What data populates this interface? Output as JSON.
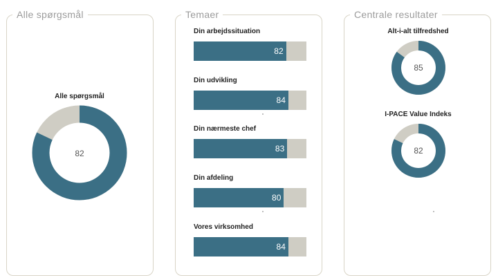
{
  "panels": {
    "all": {
      "title": "Alle spørgsmål",
      "donut": {
        "title": "Alle spørgsmål",
        "value": 82
      }
    },
    "themes": {
      "title": "Temaer",
      "items": [
        {
          "label": "Din arbejdssituation",
          "value": 82
        },
        {
          "label": "Din udvikling",
          "value": 84
        },
        {
          "label": "Din nærmeste chef",
          "value": 83
        },
        {
          "label": "Din afdeling",
          "value": 80
        },
        {
          "label": "Vores virksomhed",
          "value": 84
        }
      ]
    },
    "key": {
      "title": "Centrale resultater",
      "donuts": [
        {
          "title": "Alt-i-alt tilfredshed",
          "value": 85
        },
        {
          "title": "I-PACE Value Indeks",
          "value": 82
        }
      ]
    }
  },
  "colors": {
    "fill": "#3b6f85",
    "track": "#cfcdc4",
    "border": "#d8d4c6"
  }
}
